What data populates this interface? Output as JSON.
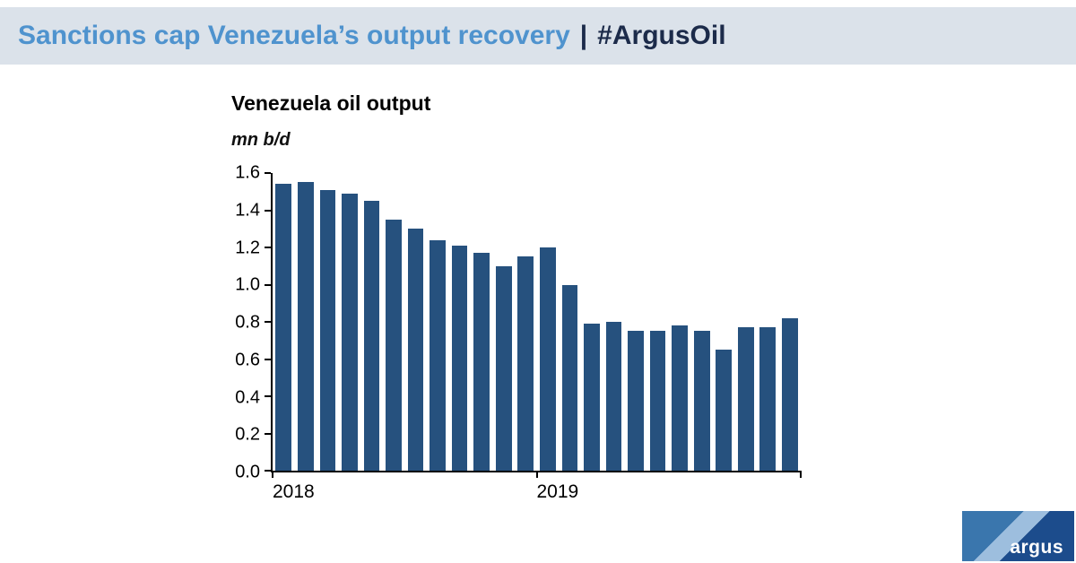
{
  "header": {
    "title_main": "Sanctions cap Venezuela’s output recovery",
    "separator": "|",
    "hashtag": "#ArgusOil"
  },
  "chart_data": {
    "type": "bar",
    "title": "Venezuela oil output",
    "ylabel": "mn b/d",
    "categories": [
      "2018-01",
      "2018-02",
      "2018-03",
      "2018-04",
      "2018-05",
      "2018-06",
      "2018-07",
      "2018-08",
      "2018-09",
      "2018-10",
      "2018-11",
      "2018-12",
      "2019-01",
      "2019-02",
      "2019-03",
      "2019-04",
      "2019-05",
      "2019-06",
      "2019-07",
      "2019-08",
      "2019-09",
      "2019-10",
      "2019-11",
      "2019-12"
    ],
    "values": [
      1.54,
      1.55,
      1.51,
      1.49,
      1.45,
      1.35,
      1.3,
      1.24,
      1.21,
      1.17,
      1.1,
      1.15,
      1.2,
      1.0,
      0.79,
      0.8,
      0.75,
      0.75,
      0.78,
      0.75,
      0.65,
      0.77,
      0.77,
      0.82
    ],
    "ylim": [
      0,
      1.6
    ],
    "ytick_step": 0.2,
    "xtick_labels": [
      {
        "label": "2018",
        "index": 0
      },
      {
        "label": "2019",
        "index": 12
      }
    ],
    "xtick_marks": [
      0,
      12,
      24
    ],
    "grid": false,
    "legend": false
  },
  "logo": {
    "text": "argus"
  },
  "colors": {
    "bar_color": "#26517e",
    "header_bg": "#dbe2ea",
    "title_blue": "#4f93ce",
    "title_dark": "#1c2b4a",
    "axis_color": "#000000",
    "logo_mid": "#3a76ad",
    "logo_band": "#9dbede",
    "logo_navy": "#1c4c8c",
    "logo_text": "#ffffff"
  }
}
